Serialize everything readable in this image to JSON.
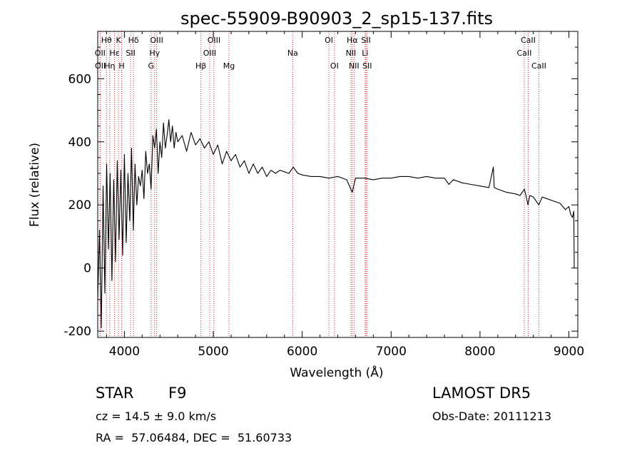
{
  "chart_data": {
    "type": "line",
    "title": "spec-55909-B90903_2_sp15-137.fits",
    "xlabel": "Wavelength (Å)",
    "ylabel": "Flux (relative)",
    "xlim": [
      3700,
      9100
    ],
    "ylim": [
      -220,
      750
    ],
    "x_ticks": [
      4000,
      5000,
      6000,
      7000,
      8000,
      9000
    ],
    "y_ticks": [
      -200,
      0,
      200,
      400,
      600
    ],
    "grid": false,
    "series": [
      {
        "color": "#000000",
        "x": [
          3700,
          3720,
          3740,
          3760,
          3780,
          3800,
          3820,
          3840,
          3860,
          3880,
          3900,
          3920,
          3940,
          3960,
          3980,
          4000,
          4020,
          4040,
          4060,
          4080,
          4100,
          4120,
          4140,
          4160,
          4180,
          4200,
          4220,
          4240,
          4260,
          4280,
          4300,
          4320,
          4340,
          4360,
          4380,
          4400,
          4420,
          4440,
          4460,
          4480,
          4500,
          4520,
          4540,
          4560,
          4580,
          4600,
          4650,
          4700,
          4750,
          4800,
          4850,
          4900,
          4950,
          5000,
          5050,
          5100,
          5150,
          5200,
          5250,
          5300,
          5350,
          5400,
          5450,
          5500,
          5550,
          5600,
          5650,
          5700,
          5750,
          5800,
          5850,
          5900,
          5950,
          6000,
          6100,
          6200,
          6300,
          6400,
          6500,
          6563,
          6600,
          6700,
          6800,
          6900,
          7000,
          7100,
          7200,
          7300,
          7400,
          7500,
          7600,
          7650,
          7700,
          7800,
          7900,
          8000,
          8100,
          8150,
          8160,
          8200,
          8300,
          8400,
          8450,
          8500,
          8540,
          8560,
          8600,
          8662,
          8700,
          8800,
          8900,
          8960,
          9000,
          9020,
          9040,
          9055,
          9060
        ],
        "y": [
          -100,
          120,
          -190,
          260,
          -80,
          330,
          60,
          300,
          -40,
          280,
          20,
          340,
          90,
          310,
          40,
          360,
          80,
          300,
          150,
          380,
          120,
          330,
          200,
          290,
          260,
          310,
          220,
          370,
          300,
          330,
          250,
          420,
          380,
          440,
          300,
          400,
          350,
          460,
          380,
          420,
          470,
          400,
          450,
          380,
          430,
          400,
          420,
          370,
          430,
          390,
          410,
          380,
          400,
          360,
          390,
          330,
          370,
          340,
          360,
          320,
          340,
          300,
          330,
          300,
          320,
          290,
          310,
          300,
          310,
          305,
          300,
          320,
          300,
          295,
          290,
          290,
          285,
          290,
          280,
          240,
          285,
          285,
          280,
          285,
          285,
          290,
          290,
          285,
          290,
          285,
          285,
          265,
          280,
          270,
          265,
          260,
          255,
          320,
          255,
          250,
          240,
          235,
          230,
          250,
          200,
          230,
          225,
          200,
          225,
          215,
          205,
          185,
          195,
          170,
          160,
          180,
          0
        ]
      }
    ],
    "line_markers": [
      {
        "label": "OII",
        "x": 3727,
        "row": 1
      },
      {
        "label": "OII",
        "x": 3729,
        "row": 2
      },
      {
        "label": "Hθ",
        "x": 3798,
        "row": 0
      },
      {
        "label": "Hη",
        "x": 3835,
        "row": 2
      },
      {
        "label": "Hε",
        "x": 3889,
        "row": 1
      },
      {
        "label": "K",
        "x": 3934,
        "row": 0
      },
      {
        "label": "H",
        "x": 3969,
        "row": 2
      },
      {
        "label": "SII",
        "x": 4070,
        "row": 1
      },
      {
        "label": "Hδ",
        "x": 4102,
        "row": 0
      },
      {
        "label": "G",
        "x": 4300,
        "row": 2
      },
      {
        "label": "Hγ",
        "x": 4340,
        "row": 1
      },
      {
        "label": "OIII",
        "x": 4363,
        "row": 0
      },
      {
        "label": "Hβ",
        "x": 4861,
        "row": 2
      },
      {
        "label": "OIII",
        "x": 4959,
        "row": 1
      },
      {
        "label": "OIII",
        "x": 5007,
        "row": 0
      },
      {
        "label": "Mg",
        "x": 5176,
        "row": 2
      },
      {
        "label": "Na",
        "x": 5893,
        "row": 1
      },
      {
        "label": "OI",
        "x": 6300,
        "row": 0
      },
      {
        "label": "OI",
        "x": 6363,
        "row": 2
      },
      {
        "label": "NII",
        "x": 6548,
        "row": 1
      },
      {
        "label": "Hα",
        "x": 6563,
        "row": 0
      },
      {
        "label": "NII",
        "x": 6583,
        "row": 2
      },
      {
        "label": "Li",
        "x": 6708,
        "row": 1
      },
      {
        "label": "SII",
        "x": 6717,
        "row": 0
      },
      {
        "label": "SII",
        "x": 6731,
        "row": 2
      },
      {
        "label": "CaII",
        "x": 8498,
        "row": 1
      },
      {
        "label": "CaII",
        "x": 8542,
        "row": 0
      },
      {
        "label": "CaII",
        "x": 8662,
        "row": 2
      }
    ]
  },
  "info": {
    "object_type": "STAR",
    "subclass": "F9",
    "survey": "LAMOST DR5",
    "obs_date": "Obs-Date: 20111213",
    "redshift": "cz = 14.5 ± 9.0 km/s",
    "coords": "RA =  57.06484, DEC =  51.60733"
  }
}
